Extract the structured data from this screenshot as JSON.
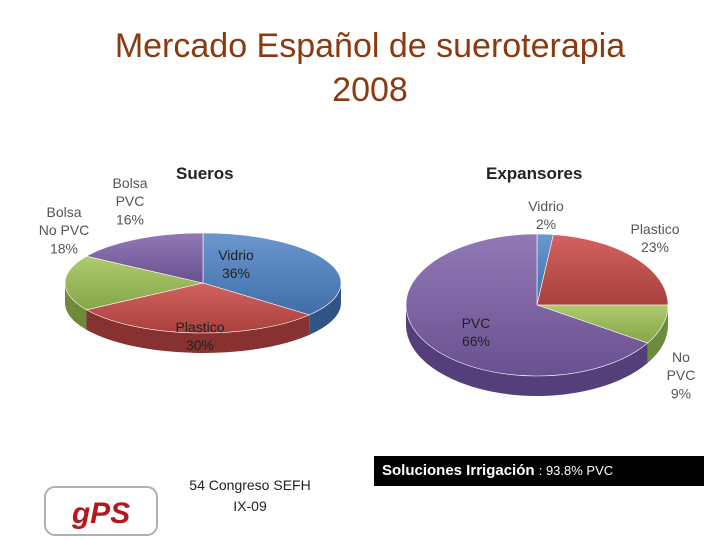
{
  "title": {
    "line1": "Mercado Español de sueroterapia",
    "line2": "2008"
  },
  "chart_data": [
    {
      "type": "pie",
      "title": "Sueros",
      "slices": [
        {
          "label": "Vidrio",
          "value": 36,
          "display": "36%",
          "color": "#4F81BD"
        },
        {
          "label": "Plastico",
          "value": 30,
          "display": "30%",
          "color": "#C0504D"
        },
        {
          "label": "Bolsa No PVC",
          "value": 18,
          "display": "18%",
          "color": "#9BBB59"
        },
        {
          "label": "Bolsa PVC",
          "value": 16,
          "display": "16%",
          "color": "#8064A2"
        }
      ]
    },
    {
      "type": "pie",
      "title": "Expansores",
      "slices": [
        {
          "label": "Vidrio",
          "value": 2,
          "display": "2%",
          "color": "#4F81BD"
        },
        {
          "label": "Plastico",
          "value": 23,
          "display": "23%",
          "color": "#C0504D"
        },
        {
          "label": "No PVC",
          "value": 9,
          "display": "9%",
          "color": "#9BBB59"
        },
        {
          "label": "PVC",
          "value": 66,
          "display": "66%",
          "color": "#8064A2"
        }
      ]
    }
  ],
  "footer": {
    "conference_line1": "54 Congreso SEFH",
    "conference_line2": "IX-09",
    "irrigation_label": "Soluciones Irrigación",
    "irrigation_value": ": 93.8% PVC",
    "logo_text": "gPS"
  }
}
